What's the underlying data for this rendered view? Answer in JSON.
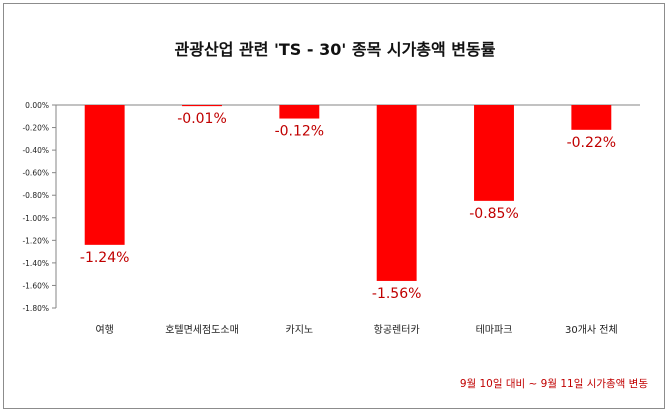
{
  "chart_data": {
    "type": "bar",
    "title": "관광산업 관련 'TS - 30' 종목 시가총액 변동률",
    "categories": [
      "여행",
      "호텔면세점도소매",
      "카지노",
      "항공렌터카",
      "테마파크",
      "30개사 전체"
    ],
    "values": [
      -1.24,
      -0.01,
      -0.12,
      -1.56,
      -0.85,
      -0.22
    ],
    "data_labels": [
      "-1.24%",
      "-0.01%",
      "-0.12%",
      "-1.56%",
      "-0.85%",
      "-0.22%"
    ],
    "ylim": [
      -1.8,
      0
    ],
    "yticks": [
      0,
      -0.2,
      -0.4,
      -0.6,
      -0.8,
      -1.0,
      -1.2,
      -1.4,
      -1.6,
      -1.8
    ],
    "ytick_labels": [
      "0.00%",
      "-0.20%",
      "-0.40%",
      "-0.60%",
      "-0.80%",
      "-1.00%",
      "-1.20%",
      "-1.40%",
      "-1.60%",
      "-1.80%"
    ],
    "grid": false,
    "note": "9월 10일 대비 ~ 9월 11일 시가총액 변동",
    "colors": {
      "bar": "#ff0000",
      "data_label": "#c00000",
      "axis": "#868686",
      "note": "#c00000"
    }
  }
}
